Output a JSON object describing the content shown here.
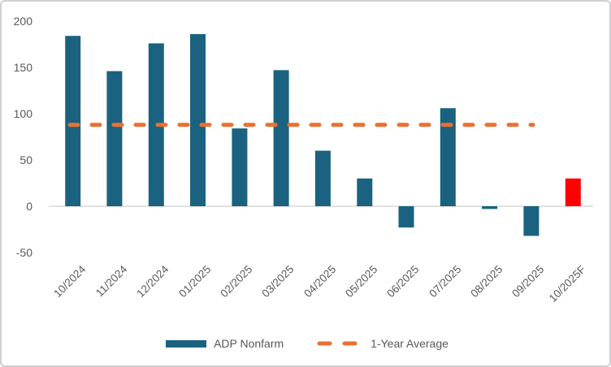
{
  "chart_data": {
    "type": "bar",
    "title": "",
    "xlabel": "",
    "ylabel": "",
    "categories": [
      "10/2024",
      "11/2024",
      "12/2024",
      "01/2025",
      "02/2025",
      "03/2025",
      "04/2025",
      "05/2025",
      "06/2025",
      "07/2025",
      "08/2025",
      "09/2025",
      "10/2025F"
    ],
    "series": [
      {
        "name": "ADP Nonfarm",
        "type": "bar",
        "color": "#1A6280",
        "values": [
          184,
          146,
          176,
          186,
          84,
          147,
          60,
          30,
          -23,
          106,
          -3,
          -32,
          30
        ],
        "highlight": {
          "index": 12,
          "category": "10/2025F",
          "color": "#FF0000"
        }
      },
      {
        "name": "1-Year Average",
        "type": "dashed-line",
        "color": "#E97132",
        "value": 88,
        "span_category_indices": [
          0,
          11
        ]
      }
    ],
    "ylim": [
      -50,
      200
    ],
    "yticks": [
      200,
      150,
      100,
      50,
      0,
      -50
    ],
    "grid": "zero-axis-only",
    "legend_position": "bottom"
  },
  "legend": {
    "items": [
      {
        "label": "ADP Nonfarm",
        "swatch": "bar",
        "color": "#1A6280"
      },
      {
        "label": "1-Year Average",
        "swatch": "dash",
        "color": "#E97132"
      }
    ]
  },
  "colors": {
    "background": "#FFFFFF",
    "frame_border": "#CDD0D3",
    "axis_text": "#595959",
    "zero_line": "#D9D9D9",
    "bar": "#1A6280",
    "forecast_bar": "#FF0000",
    "average_line": "#E97132"
  }
}
